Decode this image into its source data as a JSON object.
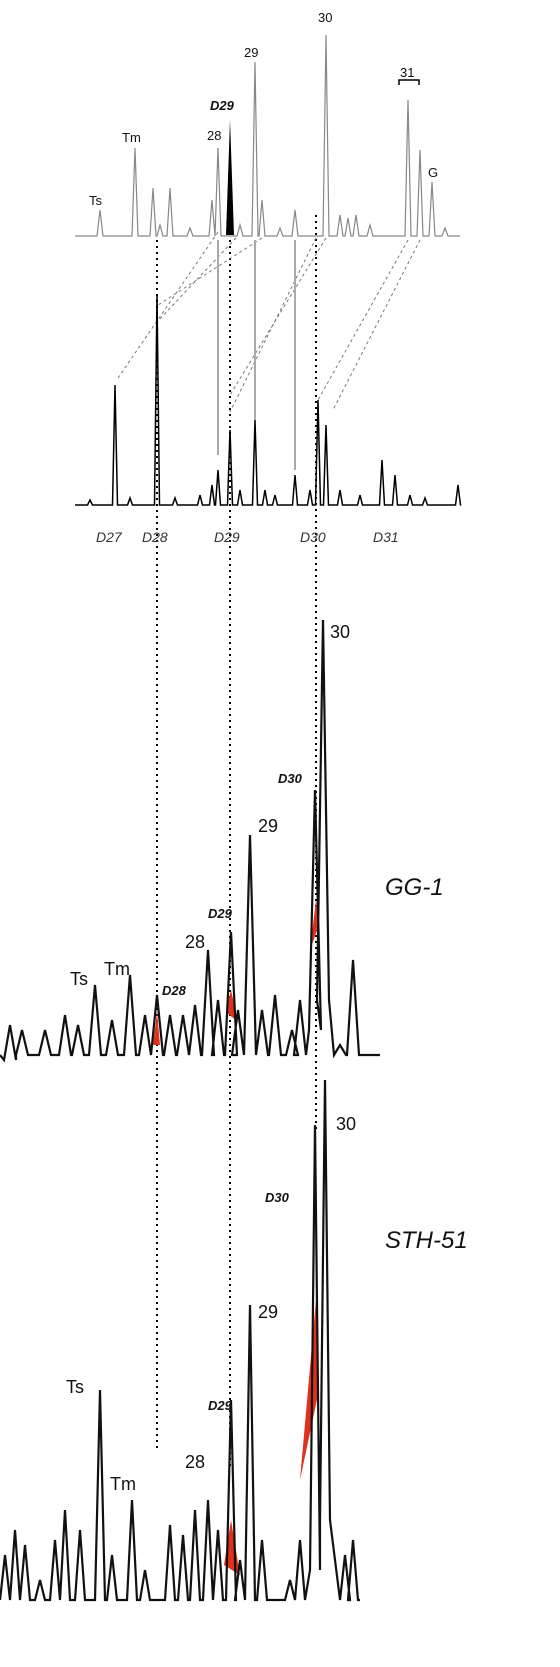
{
  "top_trace": {
    "labels": [
      "Ts",
      "Tm",
      "28",
      "D29",
      "29",
      "30",
      "31",
      "G"
    ]
  },
  "middle_trace": {
    "labels": [
      "D27",
      "D28",
      "D29",
      "D30",
      "D31"
    ]
  },
  "samples": [
    {
      "name": "GG-1",
      "labels": [
        "Ts",
        "Tm",
        "D28",
        "28",
        "D29",
        "29",
        "D30",
        "30"
      ]
    },
    {
      "name": "STH-51",
      "labels": [
        "Ts",
        "Tm",
        "28",
        "D29",
        "29",
        "D30",
        "30"
      ]
    }
  ]
}
